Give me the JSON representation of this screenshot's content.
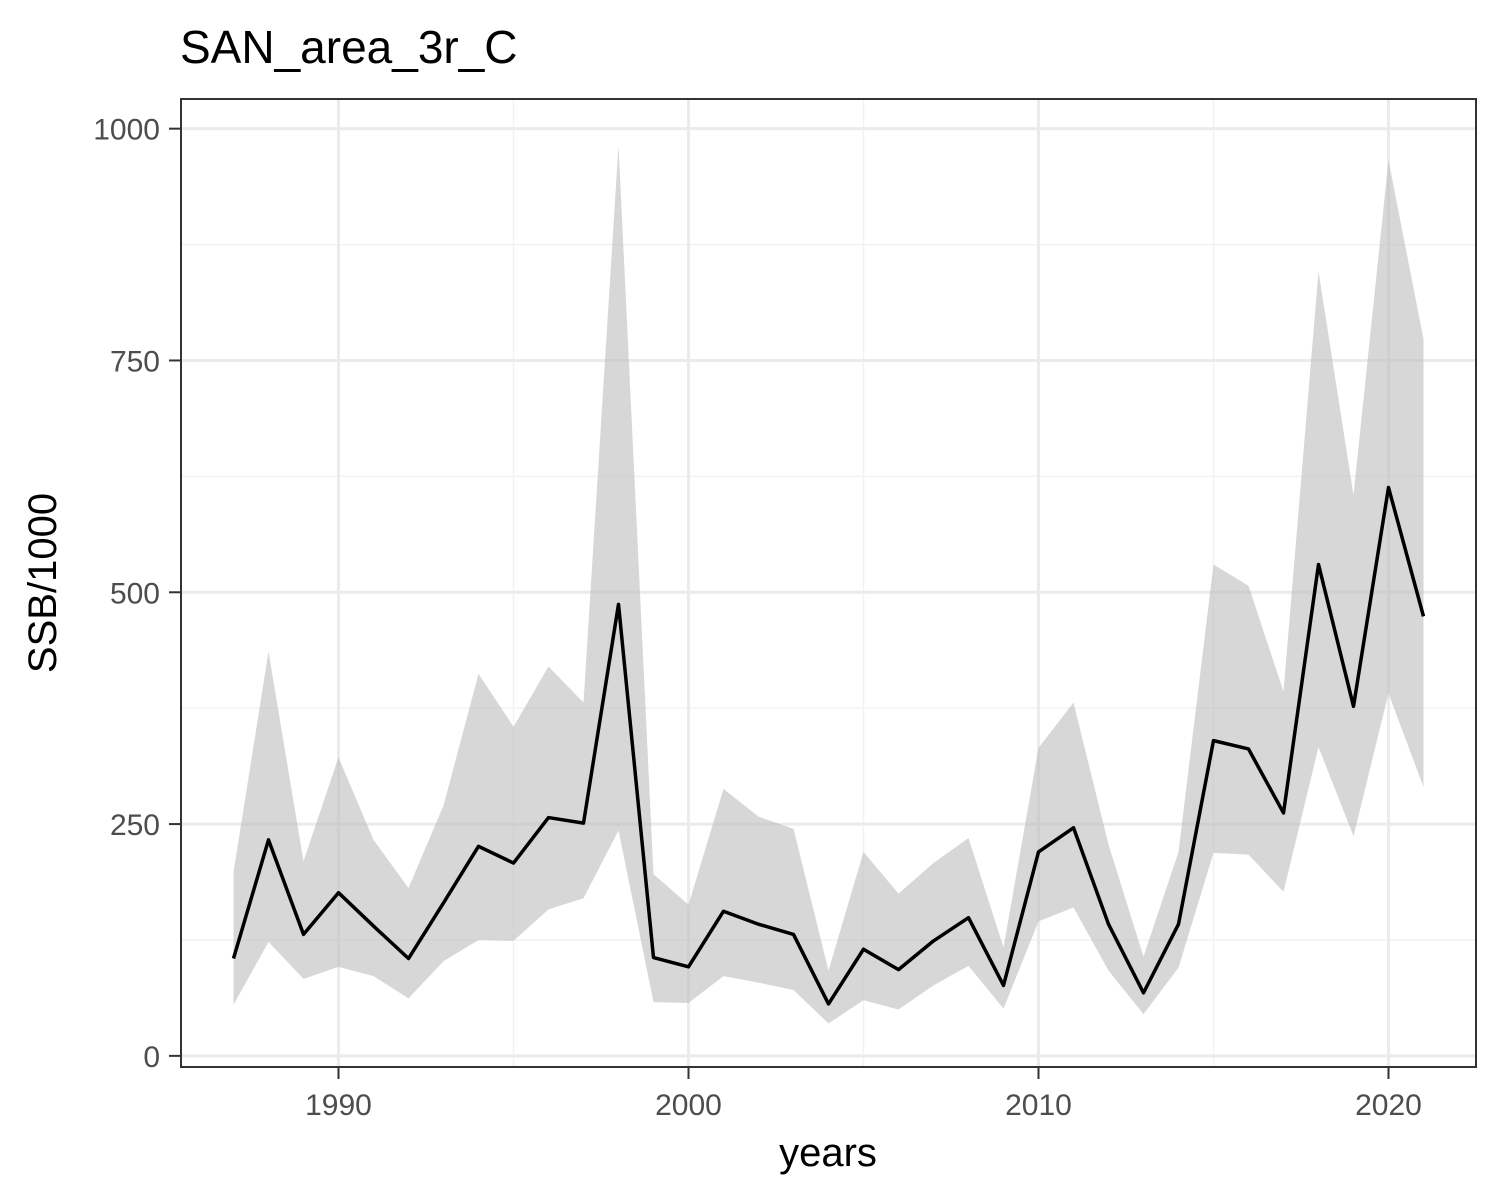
{
  "chart_data": {
    "type": "line",
    "title": "SAN_area_3r_C",
    "xlabel": "years",
    "ylabel": "SSB/1000",
    "xlim": [
      1985.5,
      2022.5
    ],
    "ylim": [
      -12,
      1032
    ],
    "x_ticks": [
      1990,
      2000,
      2010,
      2020
    ],
    "y_ticks": [
      0,
      250,
      500,
      750,
      1000
    ],
    "x_minor_ticks": [
      1995,
      2005,
      2015
    ],
    "y_minor_ticks": [
      125,
      375,
      625,
      875
    ],
    "grid": true,
    "legend": "none",
    "colors": {
      "line": "#000000",
      "ribbon": "#bdbdbd",
      "grid_major": "#ebebeb",
      "grid_minor": "#f2f2f2",
      "panel_border": "#333333",
      "tick_text": "#4d4d4d"
    },
    "series": [
      {
        "x": [
          1987,
          1988,
          1989,
          1990,
          1991,
          1992,
          1993,
          1994,
          1995,
          1996,
          1997,
          1998,
          1999,
          2000,
          2001,
          2002,
          2003,
          2004,
          2005,
          2006,
          2007,
          2008,
          2009,
          2010,
          2011,
          2012,
          2013,
          2014,
          2015,
          2016,
          2017,
          2018,
          2019,
          2020,
          2021
        ],
        "values": [
          105,
          233,
          131,
          176,
          140,
          105,
          165,
          226,
          208,
          257,
          251,
          487,
          106,
          96,
          156,
          142,
          131,
          56,
          115,
          93,
          124,
          149,
          76,
          220,
          246,
          142,
          68,
          142,
          340,
          331,
          262,
          530,
          377,
          613,
          474
        ],
        "lower": [
          55,
          123,
          83,
          96,
          86,
          62,
          102,
          125,
          124,
          158,
          170,
          243,
          58,
          57,
          86,
          79,
          71,
          35,
          60,
          50,
          76,
          97,
          51,
          145,
          160,
          92,
          45,
          95,
          219,
          217,
          177,
          333,
          237,
          391,
          290
        ],
        "upper": [
          198,
          436,
          210,
          322,
          233,
          181,
          270,
          412,
          355,
          420,
          381,
          982,
          196,
          163,
          288,
          258,
          245,
          92,
          220,
          175,
          208,
          235,
          117,
          332,
          381,
          228,
          107,
          220,
          530,
          507,
          393,
          846,
          605,
          966,
          773
        ]
      }
    ]
  }
}
